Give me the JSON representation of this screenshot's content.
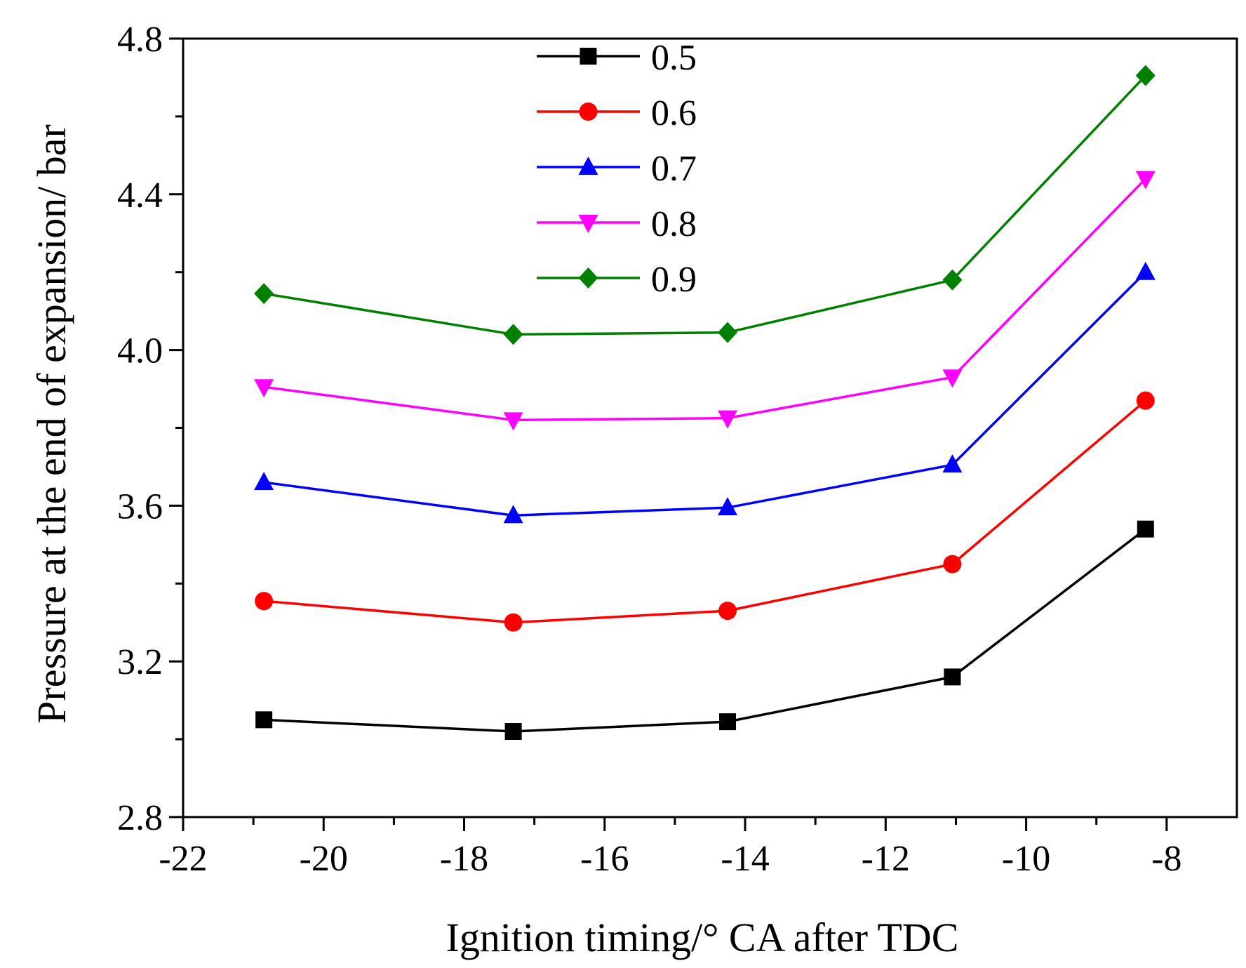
{
  "chart_data": {
    "type": "line",
    "title": "",
    "xlabel": "Ignition timing/° CA after TDC",
    "ylabel": "Pressure at the end of expansion/ bar",
    "xlim": [
      -22,
      -7
    ],
    "ylim": [
      2.8,
      4.8
    ],
    "xticks": [
      -22,
      -20,
      -18,
      -16,
      -14,
      -12,
      -10,
      -8
    ],
    "xtick_labels": [
      "-22",
      "-20",
      "-18",
      "-16",
      "-14",
      "-12",
      "-10",
      "-8"
    ],
    "yticks": [
      2.8,
      3.2,
      3.6,
      4.0,
      4.4,
      4.8
    ],
    "ytick_labels": [
      "2.8",
      "3.2",
      "3.6",
      "4.0",
      "4.4",
      "4.8"
    ],
    "grid": false,
    "legend_position": "top-center",
    "x": [
      -20.85,
      -17.3,
      -14.25,
      -11.05,
      -8.3
    ],
    "series": [
      {
        "name": "0.5",
        "marker": "square",
        "color": "#000000",
        "values": [
          3.05,
          3.02,
          3.045,
          3.16,
          3.54
        ]
      },
      {
        "name": "0.6",
        "marker": "circle",
        "color": "#ff0000",
        "values": [
          3.355,
          3.3,
          3.33,
          3.45,
          3.87
        ]
      },
      {
        "name": "0.7",
        "marker": "triangle-up",
        "color": "#0000ff",
        "values": [
          3.66,
          3.575,
          3.595,
          3.705,
          4.2
        ]
      },
      {
        "name": "0.8",
        "marker": "triangle-down",
        "color": "#ff00ff",
        "values": [
          3.905,
          3.82,
          3.825,
          3.93,
          4.44
        ]
      },
      {
        "name": "0.9",
        "marker": "diamond",
        "color": "#008000",
        "values": [
          4.145,
          4.04,
          4.045,
          4.18,
          4.705
        ]
      }
    ]
  }
}
